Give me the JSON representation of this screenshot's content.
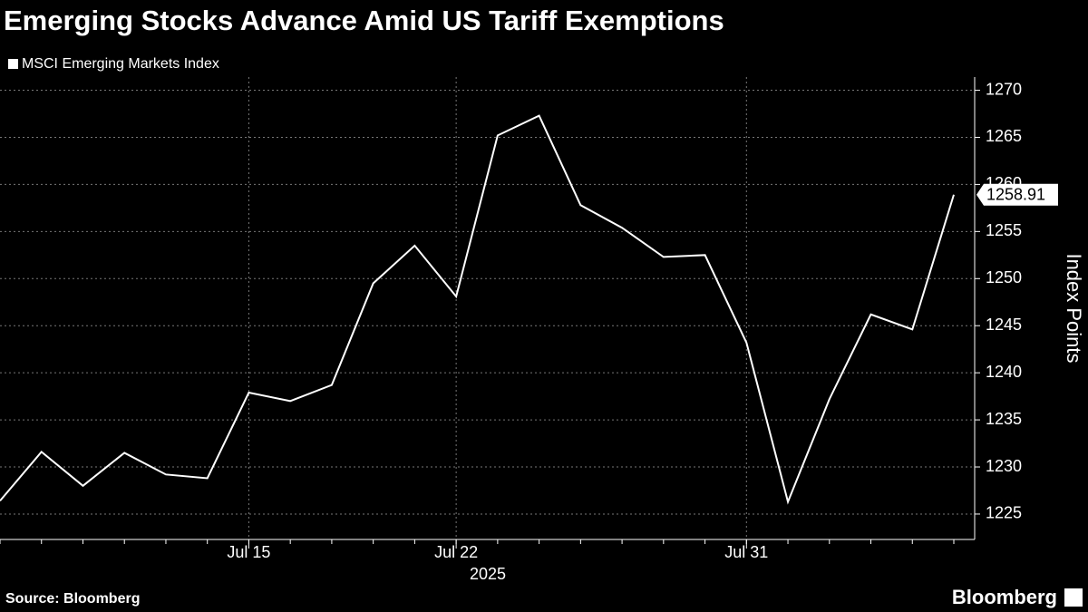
{
  "chart_data": {
    "type": "line",
    "title": "Emerging Stocks Advance Amid US Tariff Exemptions",
    "source": "Source: Bloomberg",
    "brand": "Bloomberg",
    "y_axis_label": "Index Points",
    "x_axis_sublabel": "2025",
    "categories": [
      null,
      null,
      null,
      null,
      null,
      null,
      "Jul 15",
      null,
      null,
      null,
      null,
      "Jul 22",
      null,
      null,
      null,
      null,
      null,
      null,
      "Jul 31",
      null,
      null,
      null,
      null,
      null
    ],
    "series": [
      {
        "name": "MSCI Emerging Markets Index",
        "color": "#ffffff",
        "values": [
          1226.4,
          1231.6,
          1228.0,
          1231.5,
          1229.2,
          1228.8,
          1237.9,
          1237.0,
          1238.7,
          1249.5,
          1253.5,
          1248.1,
          1265.2,
          1267.3,
          1257.8,
          1255.4,
          1252.3,
          1252.5,
          1243.2,
          1226.3,
          1237.2,
          1246.2,
          1244.6,
          1258.91
        ]
      }
    ],
    "ylim": [
      1222.3,
      1271.4
    ],
    "yticks": [
      1225,
      1230,
      1235,
      1240,
      1245,
      1250,
      1255,
      1260,
      1265,
      1270
    ],
    "grid": true
  }
}
